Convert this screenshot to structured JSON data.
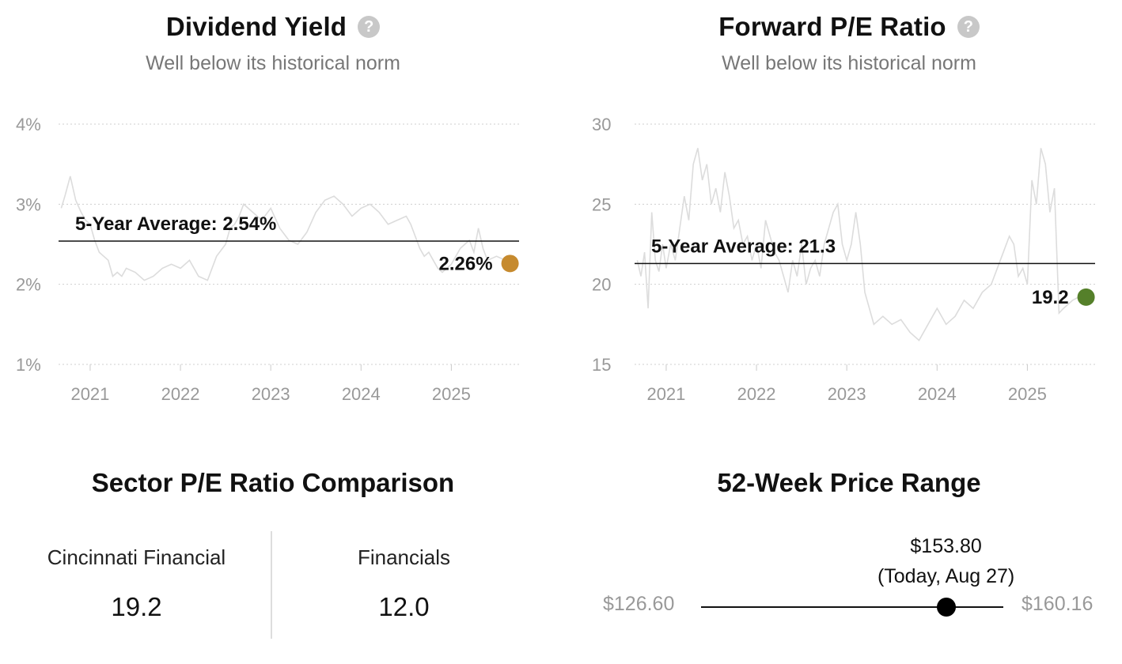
{
  "chart_data": [
    {
      "type": "line",
      "title": "Dividend Yield",
      "subtitle": "Well below its historical norm",
      "y_ticks": [
        "4%",
        "3%",
        "2%",
        "1%"
      ],
      "y_tick_values": [
        4,
        3,
        2,
        1
      ],
      "ylim": [
        1,
        4
      ],
      "x_ticks": [
        "2021",
        "2022",
        "2023",
        "2024",
        "2025"
      ],
      "xlim": [
        2020.65,
        2025.75
      ],
      "grid": true,
      "average": {
        "label": "5-Year Average: 2.54%",
        "value": 2.54
      },
      "current": {
        "label": "2.26%",
        "value": 2.26,
        "x": 2025.65,
        "color": "#c68a2e"
      },
      "line_color": "#dcdcdc",
      "series": [
        {
          "x": [
            2020.68,
            2020.72,
            2020.78,
            2020.84,
            2020.9,
            2020.95,
            2021.0,
            2021.05,
            2021.1,
            2021.15,
            2021.2,
            2021.25,
            2021.3,
            2021.35,
            2021.4,
            2021.5,
            2021.6,
            2021.7,
            2021.8,
            2021.9,
            2022.0,
            2022.1,
            2022.2,
            2022.3,
            2022.4,
            2022.5,
            2022.55,
            2022.6,
            2022.65,
            2022.7,
            2022.8,
            2022.9,
            2023.0,
            2023.1,
            2023.2,
            2023.3,
            2023.4,
            2023.5,
            2023.6,
            2023.7,
            2023.8,
            2023.9,
            2024.0,
            2024.1,
            2024.2,
            2024.3,
            2024.4,
            2024.5,
            2024.55,
            2024.6,
            2024.65,
            2024.7,
            2024.75,
            2024.8,
            2024.85,
            2024.9,
            2025.0,
            2025.05,
            2025.1,
            2025.15,
            2025.2,
            2025.25,
            2025.3,
            2025.35,
            2025.4,
            2025.5,
            2025.6,
            2025.65
          ],
          "values": [
            2.95,
            3.1,
            3.35,
            3.05,
            2.9,
            2.8,
            2.75,
            2.55,
            2.4,
            2.35,
            2.3,
            2.1,
            2.15,
            2.1,
            2.2,
            2.15,
            2.05,
            2.1,
            2.2,
            2.25,
            2.2,
            2.3,
            2.1,
            2.05,
            2.35,
            2.5,
            2.7,
            2.75,
            2.85,
            3.0,
            2.9,
            2.8,
            2.95,
            2.7,
            2.55,
            2.5,
            2.65,
            2.9,
            3.05,
            3.1,
            3.0,
            2.85,
            2.95,
            3.0,
            2.9,
            2.75,
            2.8,
            2.85,
            2.75,
            2.6,
            2.45,
            2.35,
            2.4,
            2.3,
            2.2,
            2.15,
            2.25,
            2.35,
            2.45,
            2.5,
            2.55,
            2.4,
            2.7,
            2.45,
            2.3,
            2.35,
            2.3,
            2.26
          ]
        }
      ]
    },
    {
      "type": "line",
      "title": "Forward P/E Ratio",
      "subtitle": "Well below its historical norm",
      "y_ticks": [
        "30",
        "25",
        "20",
        "15"
      ],
      "y_tick_values": [
        30,
        25,
        20,
        15
      ],
      "ylim": [
        15,
        30
      ],
      "x_ticks": [
        "2021",
        "2022",
        "2023",
        "2024",
        "2025"
      ],
      "xlim": [
        2020.65,
        2025.75
      ],
      "grid": true,
      "average": {
        "label": "5-Year Average: 21.3",
        "value": 21.3
      },
      "current": {
        "label": "19.2",
        "value": 19.2,
        "x": 2025.65,
        "color": "#55802a"
      },
      "line_color": "#dcdcdc",
      "series": [
        {
          "x": [
            2020.68,
            2020.72,
            2020.76,
            2020.8,
            2020.84,
            2020.88,
            2020.92,
            2020.96,
            2021.0,
            2021.05,
            2021.1,
            2021.15,
            2021.2,
            2021.25,
            2021.3,
            2021.35,
            2021.4,
            2021.45,
            2021.5,
            2021.55,
            2021.6,
            2021.65,
            2021.7,
            2021.75,
            2021.8,
            2021.85,
            2021.9,
            2021.95,
            2022.0,
            2022.05,
            2022.1,
            2022.15,
            2022.2,
            2022.25,
            2022.3,
            2022.35,
            2022.4,
            2022.45,
            2022.5,
            2022.55,
            2022.6,
            2022.65,
            2022.7,
            2022.75,
            2022.8,
            2022.85,
            2022.9,
            2022.95,
            2023.0,
            2023.05,
            2023.1,
            2023.15,
            2023.2,
            2023.3,
            2023.4,
            2023.5,
            2023.6,
            2023.7,
            2023.8,
            2023.9,
            2024.0,
            2024.1,
            2024.2,
            2024.3,
            2024.4,
            2024.5,
            2024.6,
            2024.7,
            2024.8,
            2024.85,
            2024.9,
            2024.95,
            2025.0,
            2025.05,
            2025.1,
            2025.15,
            2025.2,
            2025.25,
            2025.3,
            2025.35,
            2025.4,
            2025.5,
            2025.6,
            2025.65
          ],
          "values": [
            21.5,
            20.5,
            22.0,
            18.5,
            24.5,
            21.5,
            20.8,
            22.5,
            21.0,
            22.5,
            21.5,
            23.5,
            25.5,
            24.0,
            27.5,
            28.5,
            26.5,
            27.5,
            25.0,
            26.0,
            24.5,
            27.0,
            25.5,
            23.5,
            24.0,
            22.5,
            23.0,
            21.5,
            22.5,
            21.0,
            24.0,
            23.0,
            22.0,
            21.5,
            20.5,
            19.5,
            21.5,
            20.5,
            22.5,
            20.0,
            21.0,
            21.5,
            20.5,
            22.5,
            23.5,
            24.5,
            25.0,
            22.5,
            21.5,
            22.5,
            24.5,
            22.5,
            19.5,
            17.5,
            18.0,
            17.5,
            17.8,
            17.0,
            16.5,
            17.5,
            18.5,
            17.5,
            18.0,
            19.0,
            18.5,
            19.5,
            20.0,
            21.5,
            23.0,
            22.5,
            20.5,
            21.0,
            20.0,
            26.5,
            25.0,
            28.5,
            27.5,
            24.5,
            26.0,
            18.2,
            18.5,
            19.0,
            19.3,
            19.2
          ]
        }
      ]
    }
  ],
  "sector": {
    "title": "Sector P/E Ratio Comparison",
    "items": [
      {
        "name": "Cincinnati Financial",
        "value": "19.2"
      },
      {
        "name": "Financials",
        "value": "12.0"
      }
    ]
  },
  "price_range": {
    "title": "52-Week Price Range",
    "low_label": "$126.60",
    "high_label": "$160.16",
    "low": 126.6,
    "high": 160.16,
    "current": 153.8,
    "current_label": "$153.80",
    "current_note": "(Today, Aug 27)"
  }
}
